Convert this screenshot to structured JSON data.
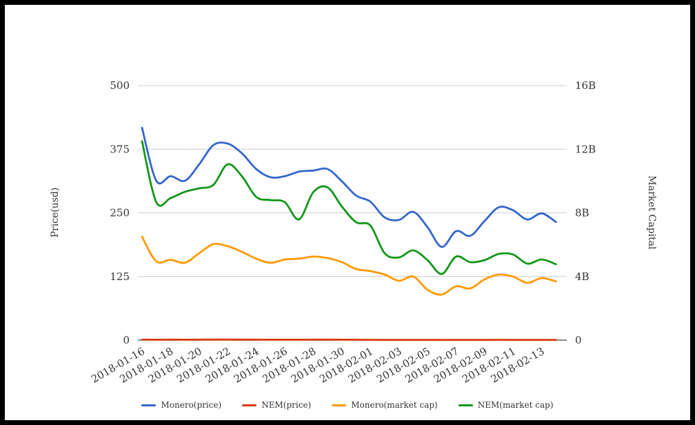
{
  "chart_data": {
    "type": "line",
    "title": "",
    "x": [
      "2018-01-16",
      "2018-01-17",
      "2018-01-18",
      "2018-01-19",
      "2018-01-20",
      "2018-01-21",
      "2018-01-22",
      "2018-01-23",
      "2018-01-24",
      "2018-01-25",
      "2018-01-26",
      "2018-01-27",
      "2018-01-28",
      "2018-01-29",
      "2018-01-30",
      "2018-01-31",
      "2018-02-01",
      "2018-02-02",
      "2018-02-03",
      "2018-02-04",
      "2018-02-05",
      "2018-02-06",
      "2018-02-07",
      "2018-02-08",
      "2018-02-09",
      "2018-02-10",
      "2018-02-11",
      "2018-02-12",
      "2018-02-13",
      "2018-02-14"
    ],
    "x_tick_labels": [
      "2018-01-16",
      "2018-01-18",
      "2018-01-20",
      "2018-01-22",
      "2018-01-24",
      "2018-01-26",
      "2018-01-28",
      "2018-01-30",
      "2018-02-01",
      "2018-02-03",
      "2018-02-05",
      "2018-02-07",
      "2018-02-09",
      "2018-02-11",
      "2018-02-13"
    ],
    "left_axis": {
      "title": "Price(usd)",
      "range": [
        0,
        500
      ],
      "tick_values": [
        0,
        125,
        250,
        375,
        500
      ],
      "tick_labels": [
        "0",
        "125",
        "250",
        "375",
        "500"
      ]
    },
    "right_axis": {
      "title": "Market Capital",
      "range_billions": [
        0,
        16
      ],
      "tick_values": [
        0,
        4,
        8,
        12,
        16
      ],
      "tick_labels": [
        "0",
        "4B",
        "8B",
        "12B",
        "16B"
      ]
    },
    "grid": true,
    "legend_position": "bottom",
    "series": [
      {
        "name": "Monero(price)",
        "axis": "left",
        "color": "#3366cc",
        "values": [
          417,
          313,
          322,
          313,
          345,
          383,
          386,
          367,
          336,
          320,
          322,
          331,
          333,
          336,
          312,
          284,
          272,
          241,
          236,
          252,
          222,
          183,
          214,
          205,
          234,
          261,
          255,
          237,
          249,
          232
        ]
      },
      {
        "name": "NEM(price)",
        "axis": "left",
        "color": "#dc3912",
        "values": [
          1.05,
          0.85,
          0.9,
          0.85,
          0.95,
          1.05,
          1.1,
          1.0,
          0.9,
          0.85,
          0.85,
          0.8,
          0.9,
          0.95,
          0.85,
          0.75,
          0.7,
          0.6,
          0.55,
          0.6,
          0.5,
          0.4,
          0.55,
          0.5,
          0.6,
          0.65,
          0.6,
          0.55,
          0.6,
          0.55
        ]
      },
      {
        "name": "Monero(market cap)",
        "axis": "right",
        "color": "#ff9900",
        "values_billions": [
          6.5,
          4.95,
          5.05,
          4.86,
          5.46,
          6.03,
          5.9,
          5.55,
          5.12,
          4.86,
          5.07,
          5.12,
          5.25,
          5.16,
          4.9,
          4.47,
          4.34,
          4.12,
          3.73,
          4.0,
          3.17,
          2.86,
          3.38,
          3.25,
          3.82,
          4.12,
          3.99,
          3.6,
          3.9,
          3.69
        ]
      },
      {
        "name": "NEM(market cap)",
        "axis": "right",
        "color": "#109618",
        "values_billions": [
          12.5,
          8.67,
          8.93,
          9.32,
          9.54,
          9.76,
          11.05,
          10.3,
          9.0,
          8.8,
          8.67,
          7.59,
          9.3,
          9.6,
          8.4,
          7.41,
          7.2,
          5.46,
          5.2,
          5.64,
          5.03,
          4.16,
          5.25,
          4.9,
          5.03,
          5.42,
          5.38,
          4.81,
          5.07,
          4.77
        ]
      }
    ],
    "style": {
      "gridline_color": "#cccccc",
      "axis_line_color": "#444444",
      "text_color": "#333333",
      "background": "#ffffff",
      "frame_color": "#000000"
    }
  }
}
